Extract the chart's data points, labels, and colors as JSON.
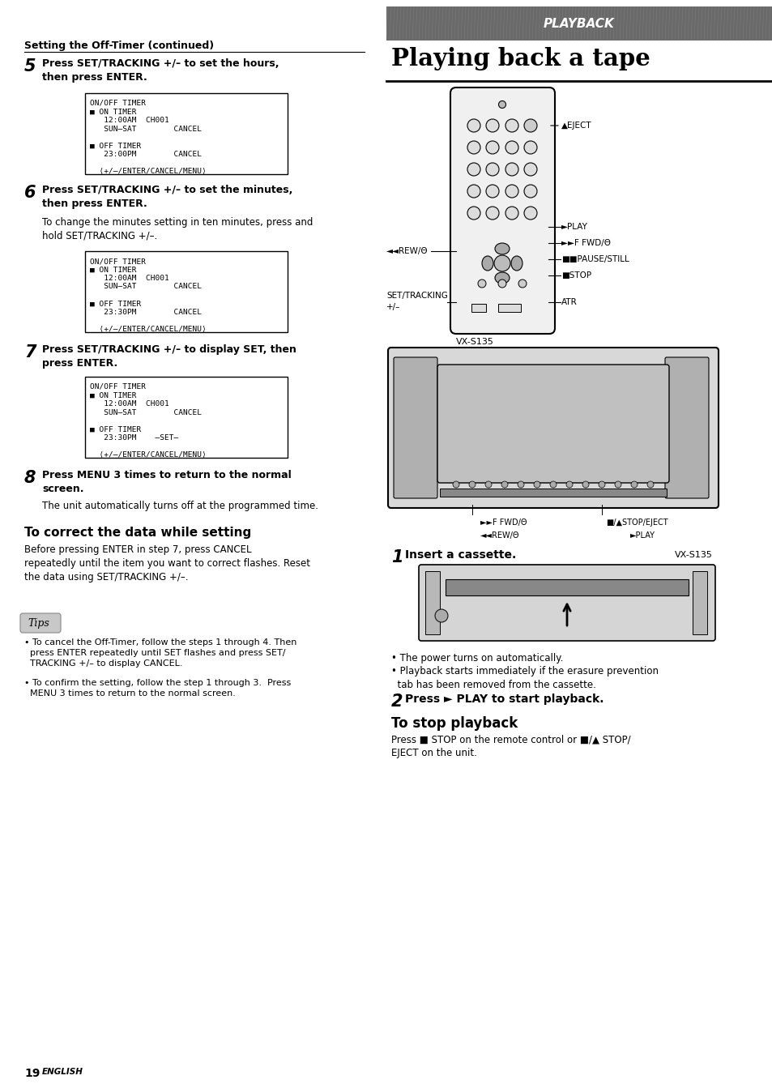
{
  "bg_color": "#ffffff",
  "page_width": 9.54,
  "page_height": 13.38,
  "left_section_title": "Setting the Off-Timer (continued)",
  "right_section_header": "PLAYBACK",
  "right_section_title": "Playing back a tape",
  "step5_num": "5",
  "step5_bold": "Press SET/TRACKING +/– to set the hours,\nthen press ENTER.",
  "step5_box": [
    "ON/OFF TIMER",
    "■ ON TIMER",
    "   12:00AM  CH001",
    "   SUN–SAT        CANCEL",
    "",
    "■ OFF TIMER",
    "   23:00PM        CANCEL",
    "",
    "  ⟨+/–/ENTER/CANCEL/MENU⟩"
  ],
  "step6_num": "6",
  "step6_bold": "Press SET/TRACKING +/– to set the minutes,\nthen press ENTER.",
  "step6_normal": "To change the minutes setting in ten minutes, press and\nhold SET/TRACKING +/–.",
  "step6_box": [
    "ON/OFF TIMER",
    "■ ON TIMER",
    "   12:00AM  CH001",
    "   SUN–SAT        CANCEL",
    "",
    "■ OFF TIMER",
    "   23:30PM        CANCEL",
    "",
    "  ⟨+/–/ENTER/CANCEL/MENU⟩"
  ],
  "step7_num": "7",
  "step7_bold": "Press SET/TRACKING +/– to display SET, then\npress ENTER.",
  "step7_box": [
    "ON/OFF TIMER",
    "■ ON TIMER",
    "   12:00AM  CH001",
    "   SUN–SAT        CANCEL",
    "",
    "■ OFF TIMER",
    "   23:30PM    –SET–",
    "",
    "  ⟨+/–/ENTER/CANCEL/MENU⟩"
  ],
  "step8_num": "8",
  "step8_bold": "Press MENU 3 times to return to the normal\nscreen.",
  "step8_normal": "The unit automatically turns off at the programmed time.",
  "correct_title": "To correct the data while setting",
  "correct_body": "Before pressing ENTER in step 7, press CANCEL\nrepeatedly until the item you want to correct flashes. Reset\nthe data using SET/TRACKING +/–.",
  "tips_title": "Tips",
  "tips_body1": "• To cancel the Off-Timer, follow the steps 1 through 4. Then\n  press ENTER repeatedly until SET flashes and press SET/\n  TRACKING +/– to display CANCEL.",
  "tips_body2": "• To confirm the setting, follow the step 1 through 3.  Press\n  MENU 3 times to return to the normal screen.",
  "page_num": "19",
  "page_lang": "ENGLISH",
  "right_step1_num": "1",
  "right_step1_bold": "Insert a cassette.",
  "right_step1_notes_1": "• The power turns on automatically.",
  "right_step1_notes_2": "• Playback starts immediately if the erasure prevention\n  tab has been removed from the cassette.",
  "right_step2_num": "2",
  "right_step2_bold": "Press ► PLAY to start playback.",
  "stop_title": "To stop playback",
  "stop_body": "Press ■ STOP on the remote control or ■/▲ STOP/\nEJECT on the unit.",
  "remote_label_eject": "▲EJECT",
  "remote_label_play": "►PLAY",
  "remote_label_ffwd": "►►F FWD/Θ",
  "remote_label_pause": "■■PAUSE/STILL",
  "remote_label_stop": "■STOP",
  "remote_label_rew": "◄◄REW/Θ",
  "remote_label_set_tracking_1": "SET/TRACKING",
  "remote_label_set_tracking_2": "+/–",
  "remote_label_atr": "ATR",
  "vcr_label_top": "VX-S135",
  "vcr_label_top2": "VX-S135",
  "vcr_bottom_ffwd": "►►F FWD/Θ",
  "vcr_bottom_stopeject": "■/▲STOP/EJECT",
  "vcr_bottom_rew": "◄◄REW/Θ",
  "vcr_bottom_play": "►PLAY"
}
